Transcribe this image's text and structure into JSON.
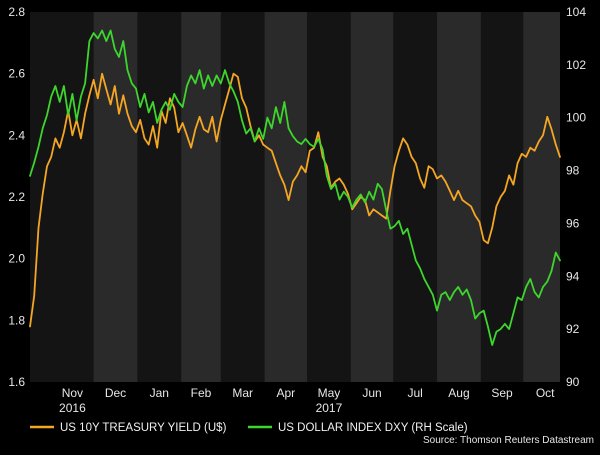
{
  "chart_data": {
    "type": "line",
    "x_axis": {
      "tick_labels": [
        "Nov",
        "Dec",
        "Jan",
        "Feb",
        "Mar",
        "Apr",
        "May",
        "Jun",
        "Jul",
        "Aug",
        "Sep",
        "Oct"
      ],
      "year_labels": [
        {
          "label": "2016",
          "month": "Nov"
        },
        {
          "label": "2017",
          "month": "May"
        }
      ],
      "shaded_months": [
        "Dec",
        "Feb",
        "Apr",
        "Jun",
        "Aug",
        "Oct"
      ],
      "xlim": [
        "2016-10-17",
        "2017-10-27"
      ]
    },
    "y_left": {
      "ylim": [
        1.6,
        2.8
      ],
      "ticks": [
        "1.6",
        "1.8",
        "2.0",
        "2.2",
        "2.4",
        "2.6",
        "2.8"
      ]
    },
    "y_right": {
      "ylim": [
        90,
        104
      ],
      "ticks": [
        "90",
        "92",
        "94",
        "96",
        "98",
        "100",
        "102",
        "104"
      ]
    },
    "series": [
      {
        "name": "US 10Y TREASURY YIELD (U$)",
        "axis": "left",
        "color": "#f5a623",
        "points": [
          [
            "2016-10-17",
            1.78
          ],
          [
            "2016-10-20",
            1.88
          ],
          [
            "2016-10-23",
            2.1
          ],
          [
            "2016-10-26",
            2.21
          ],
          [
            "2016-10-29",
            2.3
          ],
          [
            "2016-11-01",
            2.33
          ],
          [
            "2016-11-04",
            2.39
          ],
          [
            "2016-11-07",
            2.36
          ],
          [
            "2016-11-10",
            2.41
          ],
          [
            "2016-11-13",
            2.48
          ],
          [
            "2016-11-16",
            2.4
          ],
          [
            "2016-11-19",
            2.45
          ],
          [
            "2016-11-22",
            2.39
          ],
          [
            "2016-11-25",
            2.47
          ],
          [
            "2016-11-28",
            2.53
          ],
          [
            "2016-12-01",
            2.58
          ],
          [
            "2016-12-04",
            2.52
          ],
          [
            "2016-12-07",
            2.6
          ],
          [
            "2016-12-10",
            2.55
          ],
          [
            "2016-12-13",
            2.5
          ],
          [
            "2016-12-16",
            2.56
          ],
          [
            "2016-12-19",
            2.47
          ],
          [
            "2016-12-22",
            2.53
          ],
          [
            "2016-12-25",
            2.47
          ],
          [
            "2016-12-28",
            2.43
          ],
          [
            "2016-12-31",
            2.41
          ],
          [
            "2017-01-03",
            2.45
          ],
          [
            "2017-01-06",
            2.39
          ],
          [
            "2017-01-09",
            2.37
          ],
          [
            "2017-01-12",
            2.43
          ],
          [
            "2017-01-15",
            2.36
          ],
          [
            "2017-01-18",
            2.48
          ],
          [
            "2017-01-21",
            2.44
          ],
          [
            "2017-01-24",
            2.52
          ],
          [
            "2017-01-27",
            2.49
          ],
          [
            "2017-01-30",
            2.41
          ],
          [
            "2017-02-02",
            2.44
          ],
          [
            "2017-02-05",
            2.4
          ],
          [
            "2017-02-08",
            2.36
          ],
          [
            "2017-02-11",
            2.42
          ],
          [
            "2017-02-14",
            2.46
          ],
          [
            "2017-02-17",
            2.42
          ],
          [
            "2017-02-20",
            2.41
          ],
          [
            "2017-02-23",
            2.46
          ],
          [
            "2017-02-26",
            2.38
          ],
          [
            "2017-03-01",
            2.45
          ],
          [
            "2017-03-04",
            2.5
          ],
          [
            "2017-03-07",
            2.55
          ],
          [
            "2017-03-10",
            2.6
          ],
          [
            "2017-03-13",
            2.59
          ],
          [
            "2017-03-16",
            2.52
          ],
          [
            "2017-03-19",
            2.49
          ],
          [
            "2017-03-22",
            2.43
          ],
          [
            "2017-03-25",
            2.38
          ],
          [
            "2017-03-28",
            2.4
          ],
          [
            "2017-03-31",
            2.37
          ],
          [
            "2017-04-03",
            2.36
          ],
          [
            "2017-04-06",
            2.35
          ],
          [
            "2017-04-09",
            2.31
          ],
          [
            "2017-04-12",
            2.27
          ],
          [
            "2017-04-15",
            2.24
          ],
          [
            "2017-04-18",
            2.19
          ],
          [
            "2017-04-21",
            2.25
          ],
          [
            "2017-04-24",
            2.27
          ],
          [
            "2017-04-27",
            2.3
          ],
          [
            "2017-04-30",
            2.28
          ],
          [
            "2017-05-03",
            2.35
          ],
          [
            "2017-05-06",
            2.36
          ],
          [
            "2017-05-09",
            2.41
          ],
          [
            "2017-05-12",
            2.33
          ],
          [
            "2017-05-15",
            2.3
          ],
          [
            "2017-05-18",
            2.23
          ],
          [
            "2017-05-21",
            2.25
          ],
          [
            "2017-05-24",
            2.26
          ],
          [
            "2017-05-27",
            2.24
          ],
          [
            "2017-05-30",
            2.21
          ],
          [
            "2017-06-02",
            2.16
          ],
          [
            "2017-06-05",
            2.18
          ],
          [
            "2017-06-08",
            2.2
          ],
          [
            "2017-06-11",
            2.19
          ],
          [
            "2017-06-14",
            2.14
          ],
          [
            "2017-06-17",
            2.16
          ],
          [
            "2017-06-20",
            2.15
          ],
          [
            "2017-06-23",
            2.14
          ],
          [
            "2017-06-26",
            2.13
          ],
          [
            "2017-06-29",
            2.22
          ],
          [
            "2017-07-02",
            2.3
          ],
          [
            "2017-07-05",
            2.35
          ],
          [
            "2017-07-08",
            2.39
          ],
          [
            "2017-07-11",
            2.37
          ],
          [
            "2017-07-14",
            2.33
          ],
          [
            "2017-07-17",
            2.31
          ],
          [
            "2017-07-20",
            2.26
          ],
          [
            "2017-07-23",
            2.23
          ],
          [
            "2017-07-26",
            2.3
          ],
          [
            "2017-07-29",
            2.29
          ],
          [
            "2017-08-01",
            2.26
          ],
          [
            "2017-08-04",
            2.27
          ],
          [
            "2017-08-07",
            2.25
          ],
          [
            "2017-08-10",
            2.22
          ],
          [
            "2017-08-13",
            2.19
          ],
          [
            "2017-08-16",
            2.22
          ],
          [
            "2017-08-19",
            2.19
          ],
          [
            "2017-08-22",
            2.18
          ],
          [
            "2017-08-25",
            2.17
          ],
          [
            "2017-08-28",
            2.14
          ],
          [
            "2017-08-31",
            2.12
          ],
          [
            "2017-09-03",
            2.06
          ],
          [
            "2017-09-06",
            2.05
          ],
          [
            "2017-09-09",
            2.1
          ],
          [
            "2017-09-12",
            2.17
          ],
          [
            "2017-09-15",
            2.2
          ],
          [
            "2017-09-18",
            2.22
          ],
          [
            "2017-09-21",
            2.27
          ],
          [
            "2017-09-24",
            2.24
          ],
          [
            "2017-09-27",
            2.31
          ],
          [
            "2017-09-30",
            2.34
          ],
          [
            "2017-10-03",
            2.33
          ],
          [
            "2017-10-06",
            2.36
          ],
          [
            "2017-10-09",
            2.35
          ],
          [
            "2017-10-12",
            2.38
          ],
          [
            "2017-10-15",
            2.4
          ],
          [
            "2017-10-18",
            2.46
          ],
          [
            "2017-10-21",
            2.42
          ],
          [
            "2017-10-24",
            2.37
          ],
          [
            "2017-10-27",
            2.33
          ]
        ]
      },
      {
        "name": "US DOLLAR INDEX DXY (RH Scale)",
        "axis": "right",
        "color": "#3dd62c",
        "points": [
          [
            "2016-10-17",
            97.8
          ],
          [
            "2016-10-20",
            98.3
          ],
          [
            "2016-10-23",
            98.9
          ],
          [
            "2016-10-26",
            99.6
          ],
          [
            "2016-10-29",
            100.1
          ],
          [
            "2016-11-01",
            100.8
          ],
          [
            "2016-11-04",
            101.2
          ],
          [
            "2016-11-07",
            100.6
          ],
          [
            "2016-11-10",
            101.2
          ],
          [
            "2016-11-13",
            100.1
          ],
          [
            "2016-11-16",
            100.9
          ],
          [
            "2016-11-19",
            99.9
          ],
          [
            "2016-11-22",
            100.8
          ],
          [
            "2016-11-25",
            101.3
          ],
          [
            "2016-11-28",
            102.9
          ],
          [
            "2016-12-01",
            103.2
          ],
          [
            "2016-12-04",
            103.0
          ],
          [
            "2016-12-07",
            103.3
          ],
          [
            "2016-12-10",
            102.9
          ],
          [
            "2016-12-13",
            103.3
          ],
          [
            "2016-12-16",
            102.6
          ],
          [
            "2016-12-19",
            102.3
          ],
          [
            "2016-12-22",
            102.9
          ],
          [
            "2016-12-25",
            101.8
          ],
          [
            "2016-12-28",
            101.3
          ],
          [
            "2016-12-31",
            101.1
          ],
          [
            "2017-01-03",
            100.4
          ],
          [
            "2017-01-06",
            100.9
          ],
          [
            "2017-01-09",
            100.2
          ],
          [
            "2017-01-12",
            100.6
          ],
          [
            "2017-01-15",
            99.8
          ],
          [
            "2017-01-18",
            100.3
          ],
          [
            "2017-01-21",
            100.6
          ],
          [
            "2017-01-24",
            100.3
          ],
          [
            "2017-01-27",
            100.9
          ],
          [
            "2017-01-30",
            100.6
          ],
          [
            "2017-02-02",
            100.4
          ],
          [
            "2017-02-05",
            101.2
          ],
          [
            "2017-02-08",
            101.6
          ],
          [
            "2017-02-11",
            101.3
          ],
          [
            "2017-02-14",
            101.8
          ],
          [
            "2017-02-17",
            101.1
          ],
          [
            "2017-02-20",
            101.6
          ],
          [
            "2017-02-23",
            101.2
          ],
          [
            "2017-02-26",
            101.6
          ],
          [
            "2017-03-01",
            101.3
          ],
          [
            "2017-03-04",
            101.8
          ],
          [
            "2017-03-07",
            101.3
          ],
          [
            "2017-03-10",
            101.0
          ],
          [
            "2017-03-13",
            100.6
          ],
          [
            "2017-03-16",
            99.9
          ],
          [
            "2017-03-19",
            99.4
          ],
          [
            "2017-03-22",
            99.6
          ],
          [
            "2017-03-25",
            99.1
          ],
          [
            "2017-03-28",
            99.6
          ],
          [
            "2017-03-31",
            99.2
          ],
          [
            "2017-04-03",
            100.0
          ],
          [
            "2017-04-06",
            99.6
          ],
          [
            "2017-04-09",
            100.4
          ],
          [
            "2017-04-12",
            99.8
          ],
          [
            "2017-04-15",
            100.6
          ],
          [
            "2017-04-18",
            99.6
          ],
          [
            "2017-04-21",
            99.3
          ],
          [
            "2017-04-24",
            99.1
          ],
          [
            "2017-04-27",
            99.0
          ],
          [
            "2017-04-30",
            99.2
          ],
          [
            "2017-05-03",
            99.0
          ],
          [
            "2017-05-06",
            98.9
          ],
          [
            "2017-05-09",
            99.2
          ],
          [
            "2017-05-12",
            98.8
          ],
          [
            "2017-05-15",
            97.8
          ],
          [
            "2017-05-18",
            97.3
          ],
          [
            "2017-05-21",
            97.5
          ],
          [
            "2017-05-24",
            96.9
          ],
          [
            "2017-05-27",
            97.2
          ],
          [
            "2017-05-30",
            97.0
          ],
          [
            "2017-06-02",
            96.6
          ],
          [
            "2017-06-05",
            96.9
          ],
          [
            "2017-06-08",
            97.1
          ],
          [
            "2017-06-11",
            96.8
          ],
          [
            "2017-06-14",
            97.2
          ],
          [
            "2017-06-17",
            96.9
          ],
          [
            "2017-06-20",
            97.5
          ],
          [
            "2017-06-23",
            97.3
          ],
          [
            "2017-06-26",
            96.5
          ],
          [
            "2017-06-29",
            95.8
          ],
          [
            "2017-07-02",
            95.9
          ],
          [
            "2017-07-05",
            96.1
          ],
          [
            "2017-07-08",
            95.6
          ],
          [
            "2017-07-11",
            95.8
          ],
          [
            "2017-07-14",
            95.2
          ],
          [
            "2017-07-17",
            94.6
          ],
          [
            "2017-07-20",
            94.3
          ],
          [
            "2017-07-23",
            93.9
          ],
          [
            "2017-07-26",
            93.6
          ],
          [
            "2017-07-29",
            93.3
          ],
          [
            "2017-08-01",
            92.7
          ],
          [
            "2017-08-04",
            93.3
          ],
          [
            "2017-08-07",
            93.4
          ],
          [
            "2017-08-10",
            93.1
          ],
          [
            "2017-08-13",
            93.4
          ],
          [
            "2017-08-16",
            93.6
          ],
          [
            "2017-08-19",
            93.3
          ],
          [
            "2017-08-22",
            93.5
          ],
          [
            "2017-08-25",
            93.1
          ],
          [
            "2017-08-28",
            92.4
          ],
          [
            "2017-08-31",
            92.6
          ],
          [
            "2017-09-03",
            92.7
          ],
          [
            "2017-09-06",
            92.1
          ],
          [
            "2017-09-09",
            91.4
          ],
          [
            "2017-09-12",
            91.9
          ],
          [
            "2017-09-15",
            92.0
          ],
          [
            "2017-09-18",
            92.2
          ],
          [
            "2017-09-21",
            92.0
          ],
          [
            "2017-09-24",
            92.6
          ],
          [
            "2017-09-27",
            93.2
          ],
          [
            "2017-09-30",
            93.1
          ],
          [
            "2017-10-03",
            93.6
          ],
          [
            "2017-10-06",
            93.9
          ],
          [
            "2017-10-09",
            93.4
          ],
          [
            "2017-10-12",
            93.2
          ],
          [
            "2017-10-15",
            93.6
          ],
          [
            "2017-10-18",
            93.8
          ],
          [
            "2017-10-21",
            94.2
          ],
          [
            "2017-10-24",
            94.9
          ],
          [
            "2017-10-27",
            94.6
          ]
        ]
      }
    ],
    "legend": {
      "placement": "bottom-left",
      "items": [
        {
          "label": "US 10Y TREASURY YIELD (U$)",
          "color": "#f5a623"
        },
        {
          "label": "US DOLLAR INDEX DXY (RH Scale)",
          "color": "#3dd62c"
        }
      ]
    },
    "source": "Source: Thomson Reuters Datastream",
    "grid": false
  }
}
